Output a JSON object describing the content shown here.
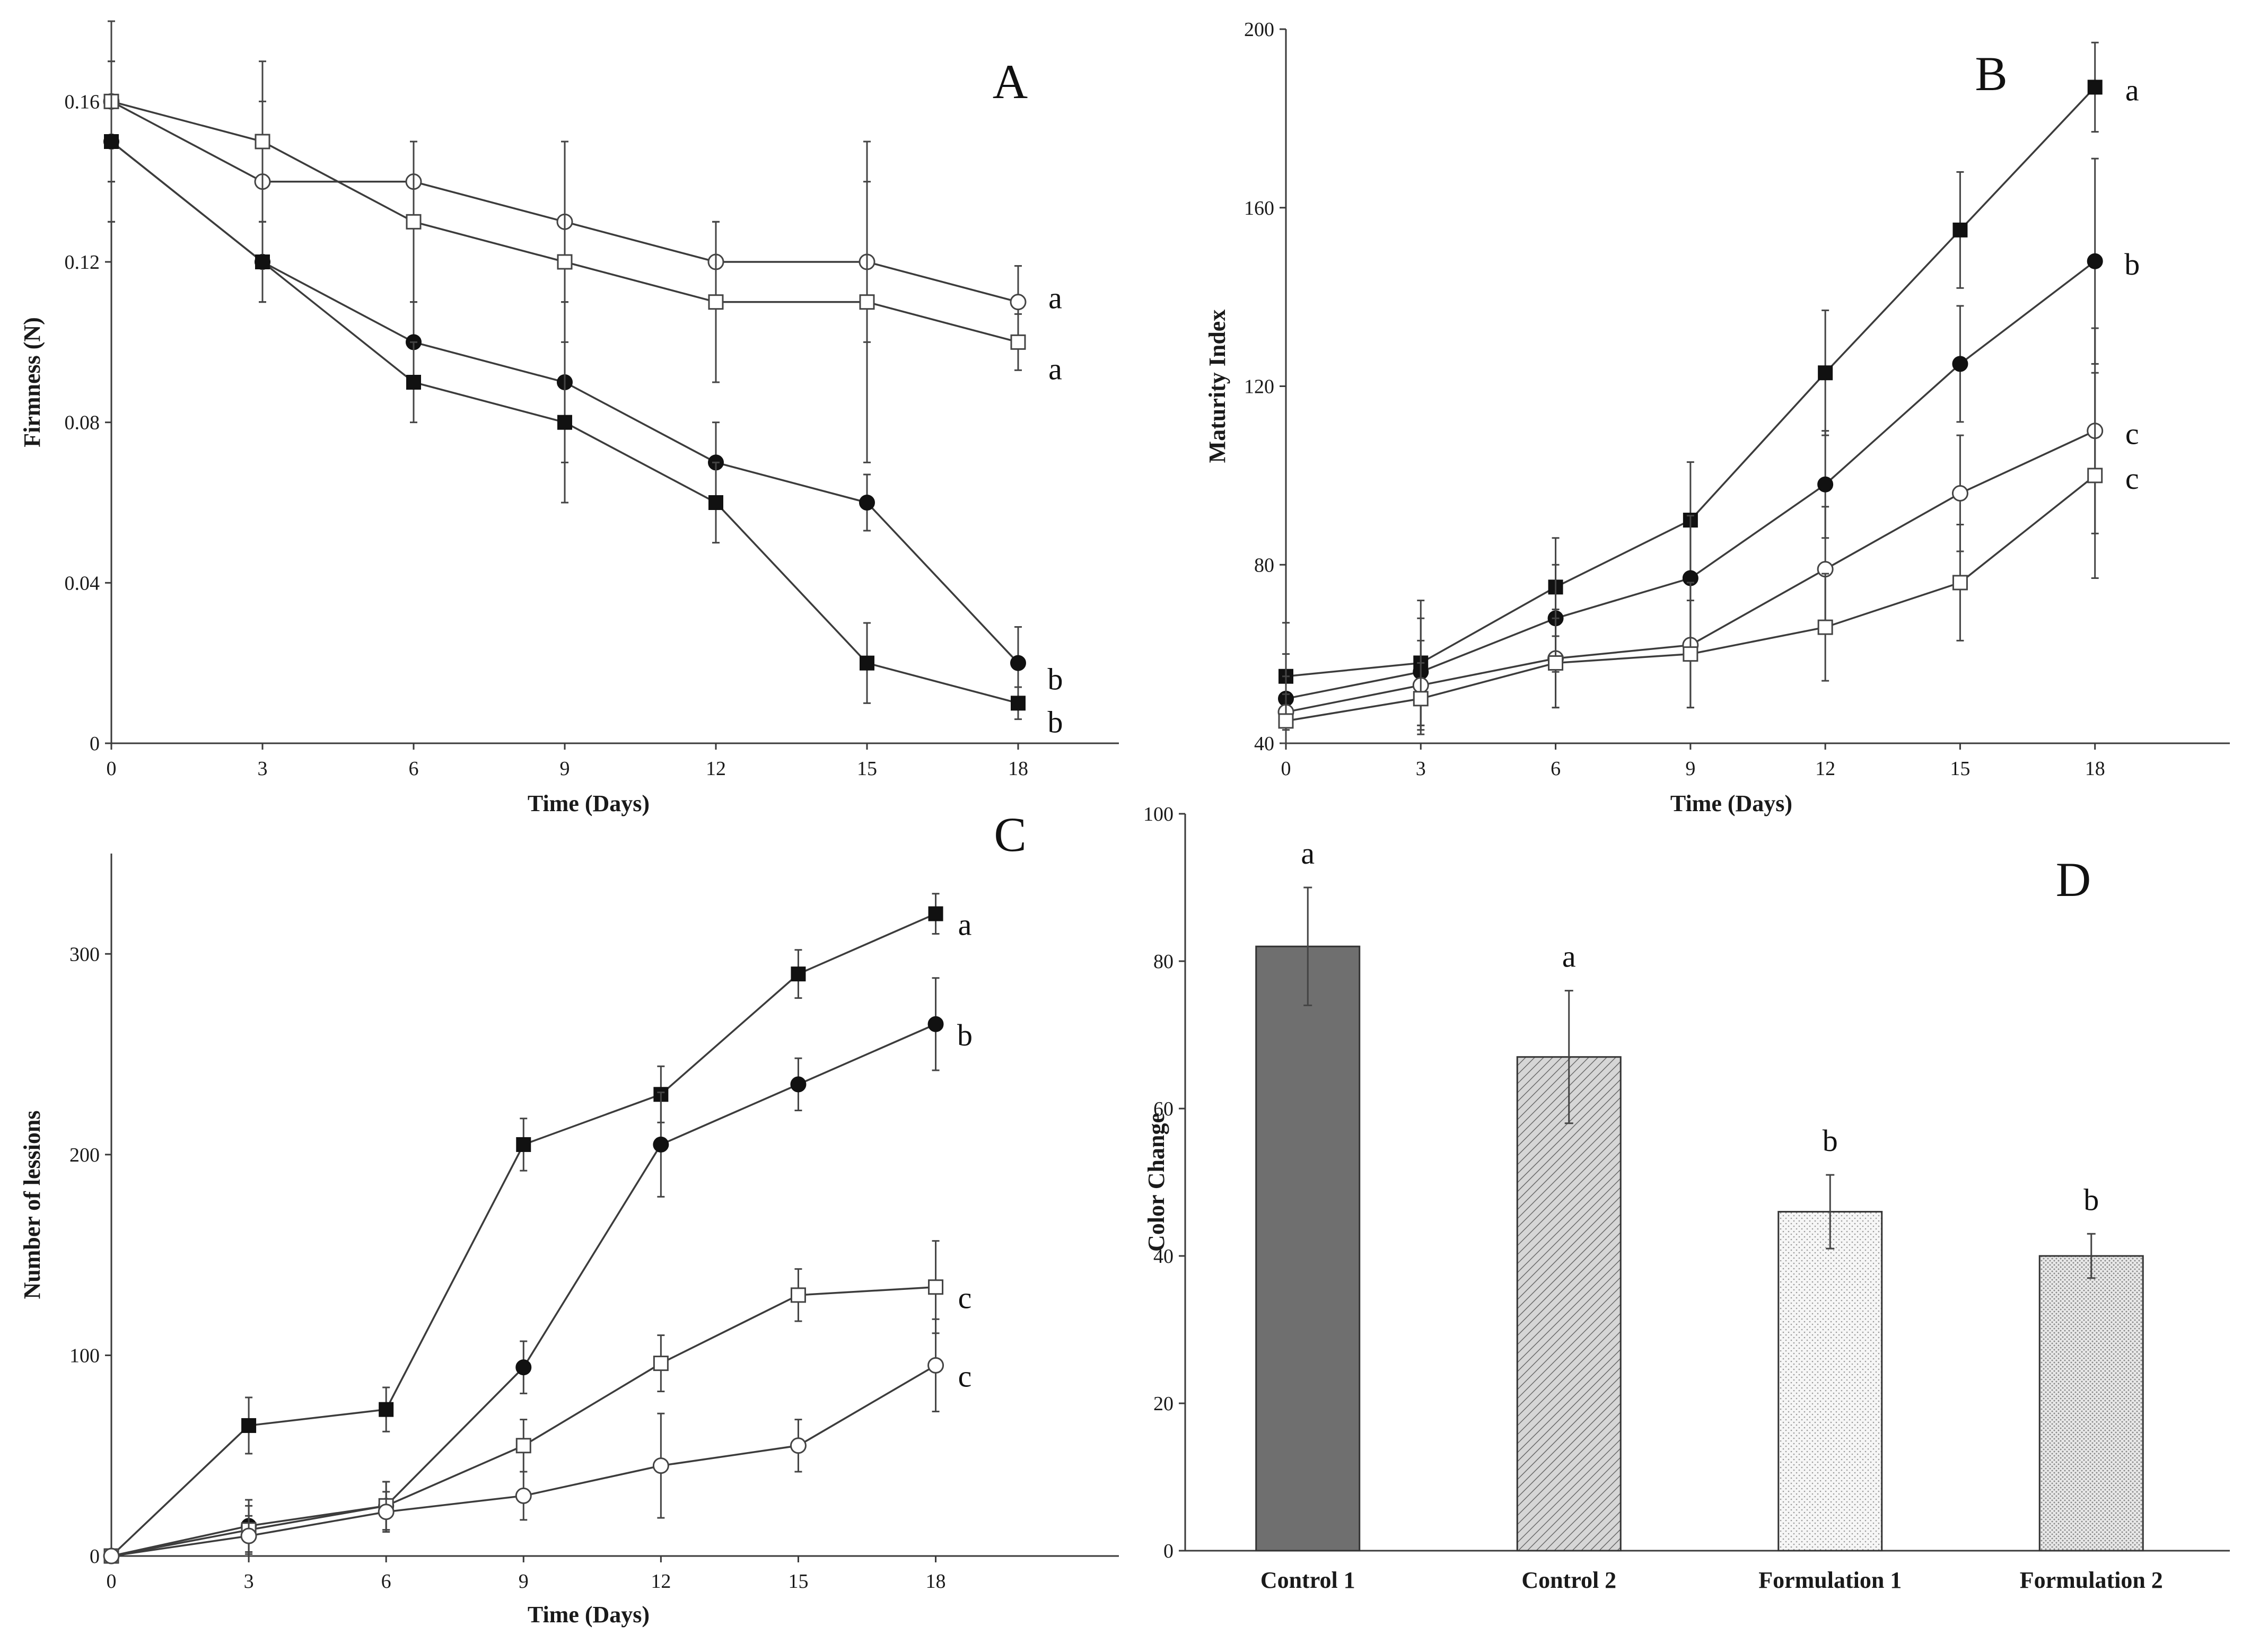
{
  "colors": {
    "axis": "#3a3a3a",
    "marker_filled": "#111111",
    "marker_open_fill": "#ffffff",
    "bar_control1": "#6f6f6f",
    "bar_control2": "#c9c9c9",
    "bar_formulation1": "#f3f3f3",
    "bar_formulation2": "#e2e2e2"
  },
  "chart_data": [
    {
      "panel": "A",
      "type": "line",
      "xlabel": "Time (Days)",
      "ylabel": "Firmness (N)",
      "x": [
        0,
        3,
        6,
        9,
        12,
        15,
        18
      ],
      "xlim": [
        0,
        20
      ],
      "xticks": [
        0,
        3,
        6,
        9,
        12,
        15,
        18
      ],
      "ylim": [
        0,
        0.18
      ],
      "yticks": [
        0,
        0.04,
        0.08,
        0.12,
        0.16
      ],
      "ytick_labels": [
        "0",
        "0.04",
        "0.08",
        "0.12",
        "0.16"
      ],
      "series": [
        {
          "marker": "open-circle",
          "values": [
            0.16,
            0.14,
            0.14,
            0.13,
            0.12,
            0.12,
            0.11
          ],
          "errors": [
            0.02,
            0.02,
            0.01,
            0.02,
            0.01,
            0.02,
            0.009
          ],
          "label": "a"
        },
        {
          "marker": "open-square",
          "values": [
            0.16,
            0.15,
            0.13,
            0.12,
            0.11,
            0.11,
            0.1
          ],
          "errors": [
            0.02,
            0.02,
            0.02,
            0.03,
            0.02,
            0.04,
            0.007
          ],
          "label": "a"
        },
        {
          "marker": "filled-circle",
          "values": [
            0.15,
            0.12,
            0.1,
            0.09,
            0.07,
            0.06,
            0.02
          ],
          "errors": [
            0.02,
            0.01,
            0.01,
            0.02,
            0.01,
            0.007,
            0.009
          ],
          "label": "b"
        },
        {
          "marker": "filled-square",
          "values": [
            0.15,
            0.12,
            0.09,
            0.08,
            0.06,
            0.02,
            0.01
          ],
          "errors": [
            0.02,
            0.01,
            0.01,
            0.02,
            0.01,
            0.01,
            0.004
          ],
          "label": "b"
        }
      ]
    },
    {
      "panel": "B",
      "type": "line",
      "xlabel": "Time (Days)",
      "ylabel": "Maturity Index",
      "x": [
        0,
        3,
        6,
        9,
        12,
        15,
        18
      ],
      "xlim": [
        0,
        21
      ],
      "xticks": [
        0,
        3,
        6,
        9,
        12,
        15,
        18
      ],
      "ylim": [
        40,
        200
      ],
      "yticks": [
        40,
        80,
        120,
        160,
        200
      ],
      "ytick_labels": [
        "40",
        "80",
        "120",
        "160",
        "200"
      ],
      "series": [
        {
          "marker": "filled-square",
          "values": [
            55,
            58,
            75,
            90,
            123,
            155,
            187
          ],
          "errors": [
            12,
            14,
            11,
            13,
            14,
            13,
            10
          ],
          "label": "a"
        },
        {
          "marker": "filled-circle",
          "values": [
            50,
            56,
            68,
            77,
            98,
            125,
            148
          ],
          "errors": [
            10,
            12,
            12,
            14,
            12,
            13,
            23
          ],
          "label": "b"
        },
        {
          "marker": "open-circle",
          "values": [
            47,
            53,
            59,
            62,
            79,
            96,
            110
          ],
          "errors": [
            8,
            10,
            11,
            14,
            14,
            13,
            23
          ],
          "label": "c"
        },
        {
          "marker": "open-square",
          "values": [
            45,
            50,
            58,
            60,
            66,
            76,
            100
          ],
          "errors": [
            6,
            8,
            10,
            12,
            12,
            13,
            23
          ],
          "label": "c"
        }
      ]
    },
    {
      "panel": "C",
      "type": "line",
      "xlabel": "Time (Days)",
      "ylabel": "Number of lessions",
      "x": [
        0,
        3,
        6,
        9,
        12,
        15,
        18
      ],
      "xlim": [
        0,
        22
      ],
      "xticks": [
        0,
        3,
        6,
        9,
        12,
        15,
        18
      ],
      "ylim": [
        0,
        350
      ],
      "yticks": [
        0,
        100,
        200,
        300
      ],
      "ytick_labels": [
        "0",
        "100",
        "200",
        "300"
      ],
      "series": [
        {
          "marker": "filled-square",
          "values": [
            0,
            65,
            73,
            205,
            230,
            290,
            320
          ],
          "errors": [
            2,
            14,
            11,
            13,
            14,
            12,
            10
          ],
          "label": "a"
        },
        {
          "marker": "filled-circle",
          "values": [
            0,
            15,
            25,
            94,
            205,
            235,
            265
          ],
          "errors": [
            2,
            13,
            12,
            13,
            26,
            13,
            23
          ],
          "label": "b"
        },
        {
          "marker": "open-square",
          "values": [
            0,
            13,
            25,
            55,
            96,
            130,
            134
          ],
          "errors": [
            2,
            12,
            12,
            13,
            14,
            13,
            23
          ],
          "label": "c"
        },
        {
          "marker": "open-circle",
          "values": [
            0,
            10,
            22,
            30,
            45,
            55,
            95
          ],
          "errors": [
            2,
            10,
            10,
            12,
            26,
            13,
            23
          ],
          "label": "c"
        }
      ]
    },
    {
      "panel": "D",
      "type": "bar",
      "xlabel": "",
      "ylabel": "Color Change",
      "categories": [
        "Control 1",
        "Control 2",
        "Formulation 1",
        "Formulation 2"
      ],
      "values": [
        82,
        67,
        46,
        40
      ],
      "errors": [
        8,
        9,
        5,
        3
      ],
      "labels": [
        "a",
        "a",
        "b",
        "b"
      ],
      "ylim": [
        0,
        100
      ],
      "yticks": [
        0,
        20,
        40,
        60,
        80,
        100
      ],
      "ytick_labels": [
        "0",
        "20",
        "40",
        "60",
        "80",
        "100"
      ]
    }
  ]
}
